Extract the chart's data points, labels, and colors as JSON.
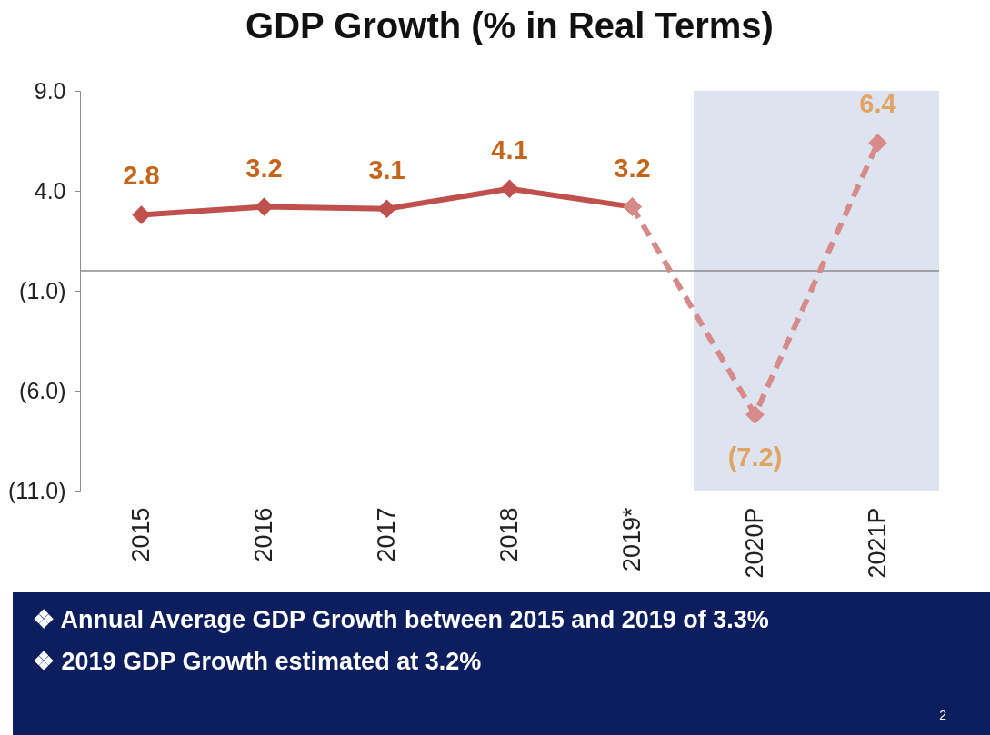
{
  "chart_data": {
    "type": "line",
    "title": "GDP Growth  (% in Real Terms)",
    "categories": [
      "2015",
      "2016",
      "2017",
      "2018",
      "2019*",
      "2020P",
      "2021P"
    ],
    "series": [
      {
        "color": "#c0504d",
        "line_style": "solid",
        "values": [
          2.8,
          3.2,
          3.1,
          4.1,
          3.2,
          null,
          null
        ],
        "value_labels": [
          "2.8",
          "3.2",
          "3.1",
          "4.1",
          "3.2",
          null,
          null
        ]
      },
      {
        "color": "#d68a89",
        "line_style": "dashed",
        "values": [
          null,
          null,
          null,
          null,
          3.2,
          -7.2,
          6.4
        ],
        "value_labels": [
          null,
          null,
          null,
          null,
          null,
          "(7.2)",
          "6.4"
        ]
      }
    ],
    "marker": "diamond",
    "ylim": [
      -11,
      9
    ],
    "yticks": [
      {
        "value": 9,
        "label": "9.0"
      },
      {
        "value": 4,
        "label": "4.0"
      },
      {
        "value": -1,
        "label": "(1.0)"
      },
      {
        "value": -6,
        "label": "(6.0)"
      },
      {
        "value": -11,
        "label": "(11.0)"
      }
    ],
    "ref_lines": [
      {
        "axis": "y",
        "value": 0,
        "label": null,
        "color": "#8c8c8c"
      }
    ],
    "bands": [
      {
        "axis": "x",
        "from": "2020P",
        "to": "2021P",
        "label": null,
        "color": "#dde4f0"
      }
    ],
    "annotations": [
      "❖ Annual Average GDP Growth between 2015 and 2019 of 3.3%",
      "❖  2019 GDP Growth estimated at 3.2%",
      "2"
    ]
  }
}
